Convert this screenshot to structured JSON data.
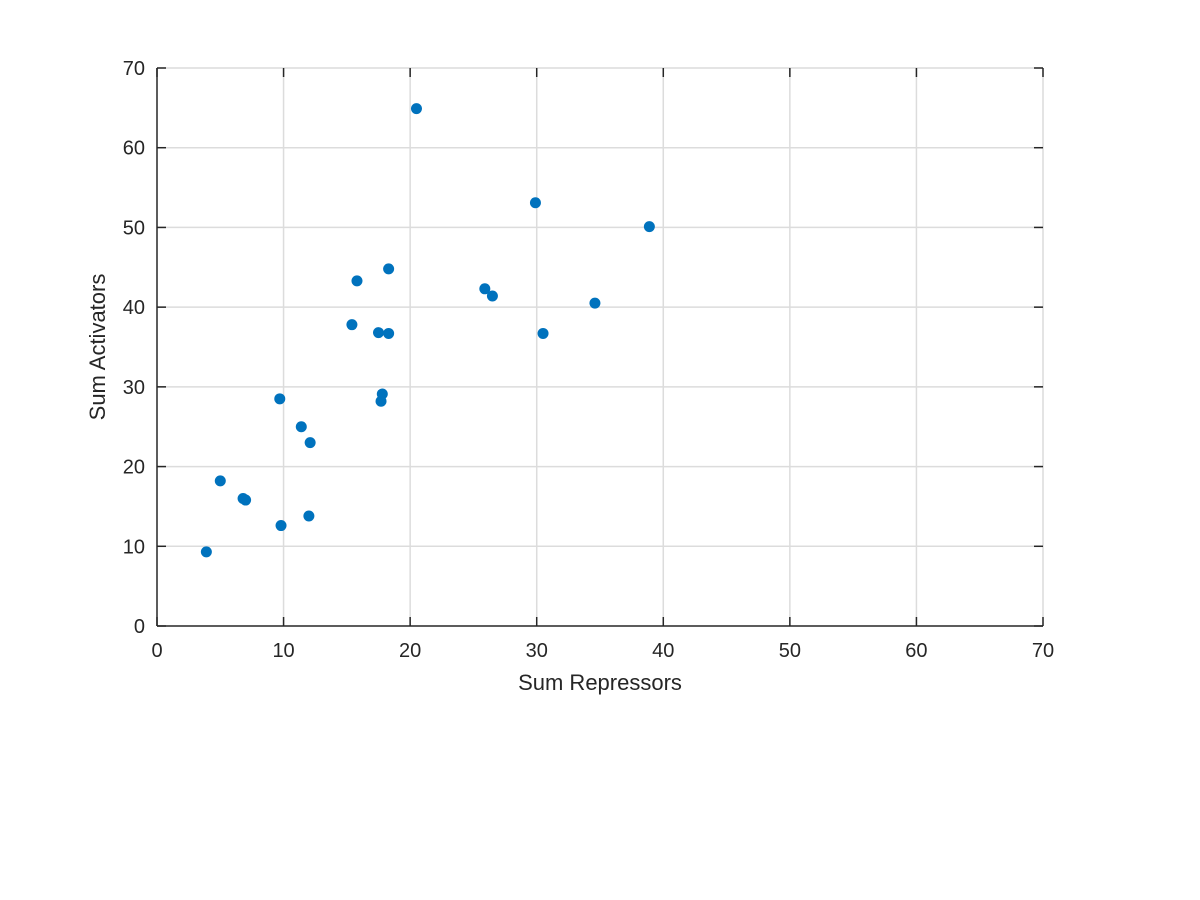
{
  "chart_data": {
    "type": "scatter",
    "title": "",
    "xlabel": "Sum Repressors",
    "ylabel": "Sum Activators",
    "xlim": [
      0,
      70
    ],
    "ylim": [
      0,
      70
    ],
    "xticks": [
      0,
      10,
      20,
      30,
      40,
      50,
      60,
      70
    ],
    "yticks": [
      0,
      10,
      20,
      30,
      40,
      50,
      60,
      70
    ],
    "grid": true,
    "marker_color": "#0072BD",
    "points": [
      {
        "x": 3.9,
        "y": 9.3
      },
      {
        "x": 5.0,
        "y": 18.2
      },
      {
        "x": 6.8,
        "y": 16.0
      },
      {
        "x": 7.0,
        "y": 15.8
      },
      {
        "x": 9.7,
        "y": 28.5
      },
      {
        "x": 9.8,
        "y": 12.6
      },
      {
        "x": 11.4,
        "y": 25.0
      },
      {
        "x": 12.1,
        "y": 23.0
      },
      {
        "x": 12.0,
        "y": 13.8
      },
      {
        "x": 15.4,
        "y": 37.8
      },
      {
        "x": 15.8,
        "y": 43.3
      },
      {
        "x": 17.5,
        "y": 36.8
      },
      {
        "x": 17.7,
        "y": 28.2
      },
      {
        "x": 17.8,
        "y": 29.1
      },
      {
        "x": 18.3,
        "y": 44.8
      },
      {
        "x": 18.3,
        "y": 36.7
      },
      {
        "x": 20.5,
        "y": 64.9
      },
      {
        "x": 25.9,
        "y": 42.3
      },
      {
        "x": 26.5,
        "y": 41.4
      },
      {
        "x": 29.9,
        "y": 53.1
      },
      {
        "x": 30.5,
        "y": 36.7
      },
      {
        "x": 34.6,
        "y": 40.5
      },
      {
        "x": 38.9,
        "y": 50.1
      }
    ]
  }
}
